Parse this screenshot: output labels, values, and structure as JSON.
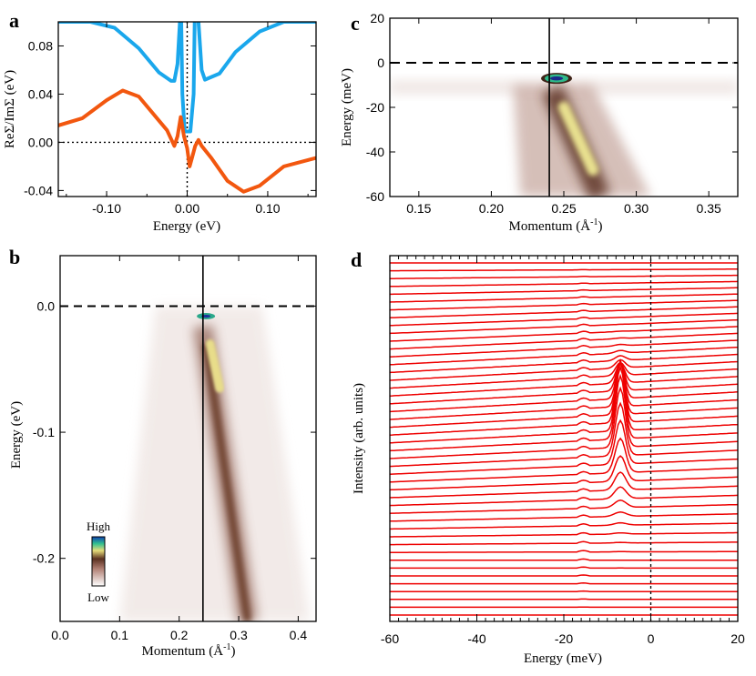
{
  "chart_data": [
    {
      "panel": "a",
      "type": "line",
      "xlabel": "Energy (eV)",
      "ylabel": "ReΣ/ImΣ (eV)",
      "xlim": [
        -0.16,
        0.16
      ],
      "ylim": [
        -0.045,
        0.1
      ],
      "xticks": [
        "-0.10",
        "0.00",
        "0.10"
      ],
      "yticks": [
        "-0.04",
        "0.00",
        "0.04",
        "0.08"
      ],
      "colors": {
        "im": "#1aa7ec",
        "re": "#f2570f"
      },
      "series": [
        {
          "key": "im",
          "x": [
            -0.16,
            -0.12,
            -0.09,
            -0.06,
            -0.035,
            -0.02,
            -0.016,
            -0.012,
            -0.009,
            -0.008,
            -0.006,
            -0.003,
            0.0,
            0.004,
            0.008,
            0.01,
            0.014,
            0.018,
            0.022,
            0.04,
            0.06,
            0.09,
            0.12,
            0.16
          ],
          "y": [
            0.1,
            0.1,
            0.095,
            0.078,
            0.058,
            0.051,
            0.051,
            0.065,
            0.1,
            0.13,
            0.04,
            0.009,
            0.009,
            0.009,
            0.04,
            0.13,
            0.1,
            0.06,
            0.052,
            0.057,
            0.075,
            0.092,
            0.1,
            0.1
          ]
        },
        {
          "key": "re",
          "x": [
            -0.16,
            -0.13,
            -0.1,
            -0.08,
            -0.06,
            -0.04,
            -0.025,
            -0.016,
            -0.012,
            -0.008,
            -0.004,
            0.0,
            0.003,
            0.006,
            0.01,
            0.014,
            0.018,
            0.03,
            0.05,
            0.07,
            0.09,
            0.12,
            0.16
          ],
          "y": [
            0.014,
            0.02,
            0.035,
            0.043,
            0.038,
            0.022,
            0.01,
            -0.003,
            0.005,
            0.021,
            0.005,
            -0.005,
            -0.02,
            -0.013,
            -0.003,
            0.002,
            -0.003,
            -0.013,
            -0.032,
            -0.041,
            -0.036,
            -0.02,
            -0.013
          ]
        }
      ]
    },
    {
      "panel": "b",
      "type": "heatmap",
      "xlabel": "Momentum (Å",
      "xlabel_sup": "-1",
      "xlabel_close": ")",
      "ylabel": "Energy (eV)",
      "xlim": [
        0.0,
        0.43
      ],
      "ylim": [
        -0.25,
        0.04
      ],
      "xticks": [
        "0.0",
        "0.1",
        "0.2",
        "0.3",
        "0.4"
      ],
      "yticks": [
        "0.0",
        "-0.1",
        "-0.2"
      ],
      "kF": 0.24,
      "band": {
        "k0": 0.24,
        "e0": -0.006,
        "k_bottom": 0.315,
        "e_bottom": -0.25
      },
      "colorbar": {
        "high": "High",
        "low": "Low"
      }
    },
    {
      "panel": "c",
      "type": "heatmap",
      "xlabel": "Momentum (Å",
      "xlabel_sup": "-1",
      "xlabel_close": ")",
      "ylabel": "Energy (meV)",
      "xlim": [
        0.13,
        0.37
      ],
      "ylim": [
        -60,
        20
      ],
      "xticks": [
        "0.15",
        "0.20",
        "0.25",
        "0.30",
        "0.35"
      ],
      "yticks": [
        "20",
        "0",
        "-20",
        "-40",
        "-60"
      ],
      "kF": 0.24,
      "peak": {
        "k": 0.245,
        "e": -7
      }
    },
    {
      "panel": "d",
      "type": "line",
      "description_series": "energy distribution curves stacked",
      "xlabel": "Energy (meV)",
      "ylabel": "Intensity (arb. units)",
      "xlim": [
        -60,
        20
      ],
      "xticks": [
        "-60",
        "-40",
        "-20",
        "0",
        "20"
      ],
      "n_curves": 46,
      "peak_energy": -7,
      "color": "#ee0000"
    }
  ],
  "panel_labels": {
    "a": "a",
    "b": "b",
    "c": "c",
    "d": "d"
  }
}
